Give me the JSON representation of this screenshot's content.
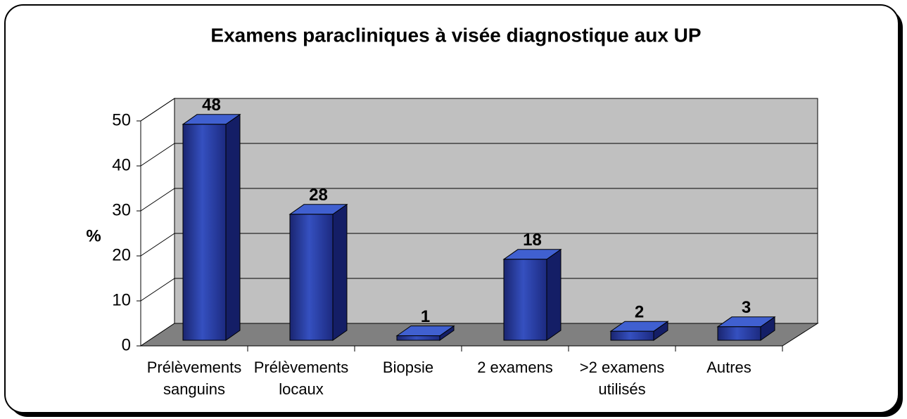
{
  "chart_data": {
    "type": "bar3d",
    "title": "Examens paracliniques à visée diagnostique aux UP",
    "y_label": "%",
    "categories": [
      "Prélèvements sanguins",
      "Prélèvements locaux",
      "Biopsie",
      "2 examens",
      ">2 examens utilisés",
      "Autres"
    ],
    "values": [
      48,
      28,
      1,
      18,
      2,
      3
    ],
    "color": "#2a3fa8",
    "ylim": [
      0,
      50
    ],
    "yticks": [
      0,
      10,
      20,
      30,
      40,
      50
    ],
    "grid": true
  }
}
